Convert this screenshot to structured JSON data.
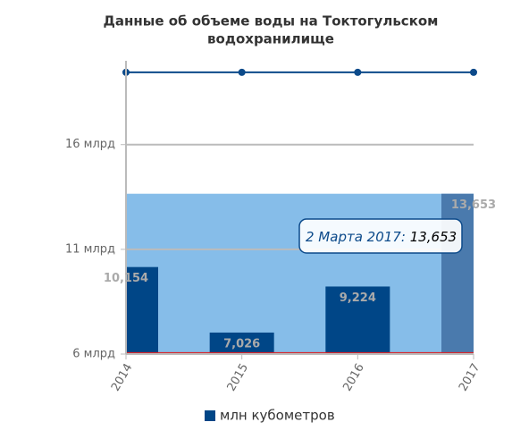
{
  "chart_data": {
    "type": "bar",
    "title": [
      "Данные об объеме воды на Токтогульском",
      "водохранилище"
    ],
    "categories": [
      "2014",
      "2015",
      "2016",
      "2017"
    ],
    "series": [
      {
        "name": "млн кубометров",
        "color": "#004687",
        "highlight_color": "#4a7aad",
        "values": [
          10154,
          7026,
          9224,
          13653
        ],
        "value_labels": [
          "10,154",
          "7,026",
          "9,224",
          "13,653"
        ]
      },
      {
        "type": "line",
        "color": "#0c4a8a",
        "values": [
          19450,
          19450,
          19450,
          19450
        ]
      },
      {
        "type": "line",
        "color": "#d9262b",
        "values": [
          6050,
          6050,
          6050,
          6050
        ]
      }
    ],
    "ylim": [
      6000,
      20000
    ],
    "yticks": [
      {
        "value": 6000,
        "label": "6 млрд"
      },
      {
        "value": 11000,
        "label": "11 млрд"
      },
      {
        "value": 16000,
        "label": "16 млрд"
      }
    ],
    "grid": true,
    "tooltip": {
      "label": "2 Марта 2017:",
      "value_label": "13,653"
    }
  }
}
